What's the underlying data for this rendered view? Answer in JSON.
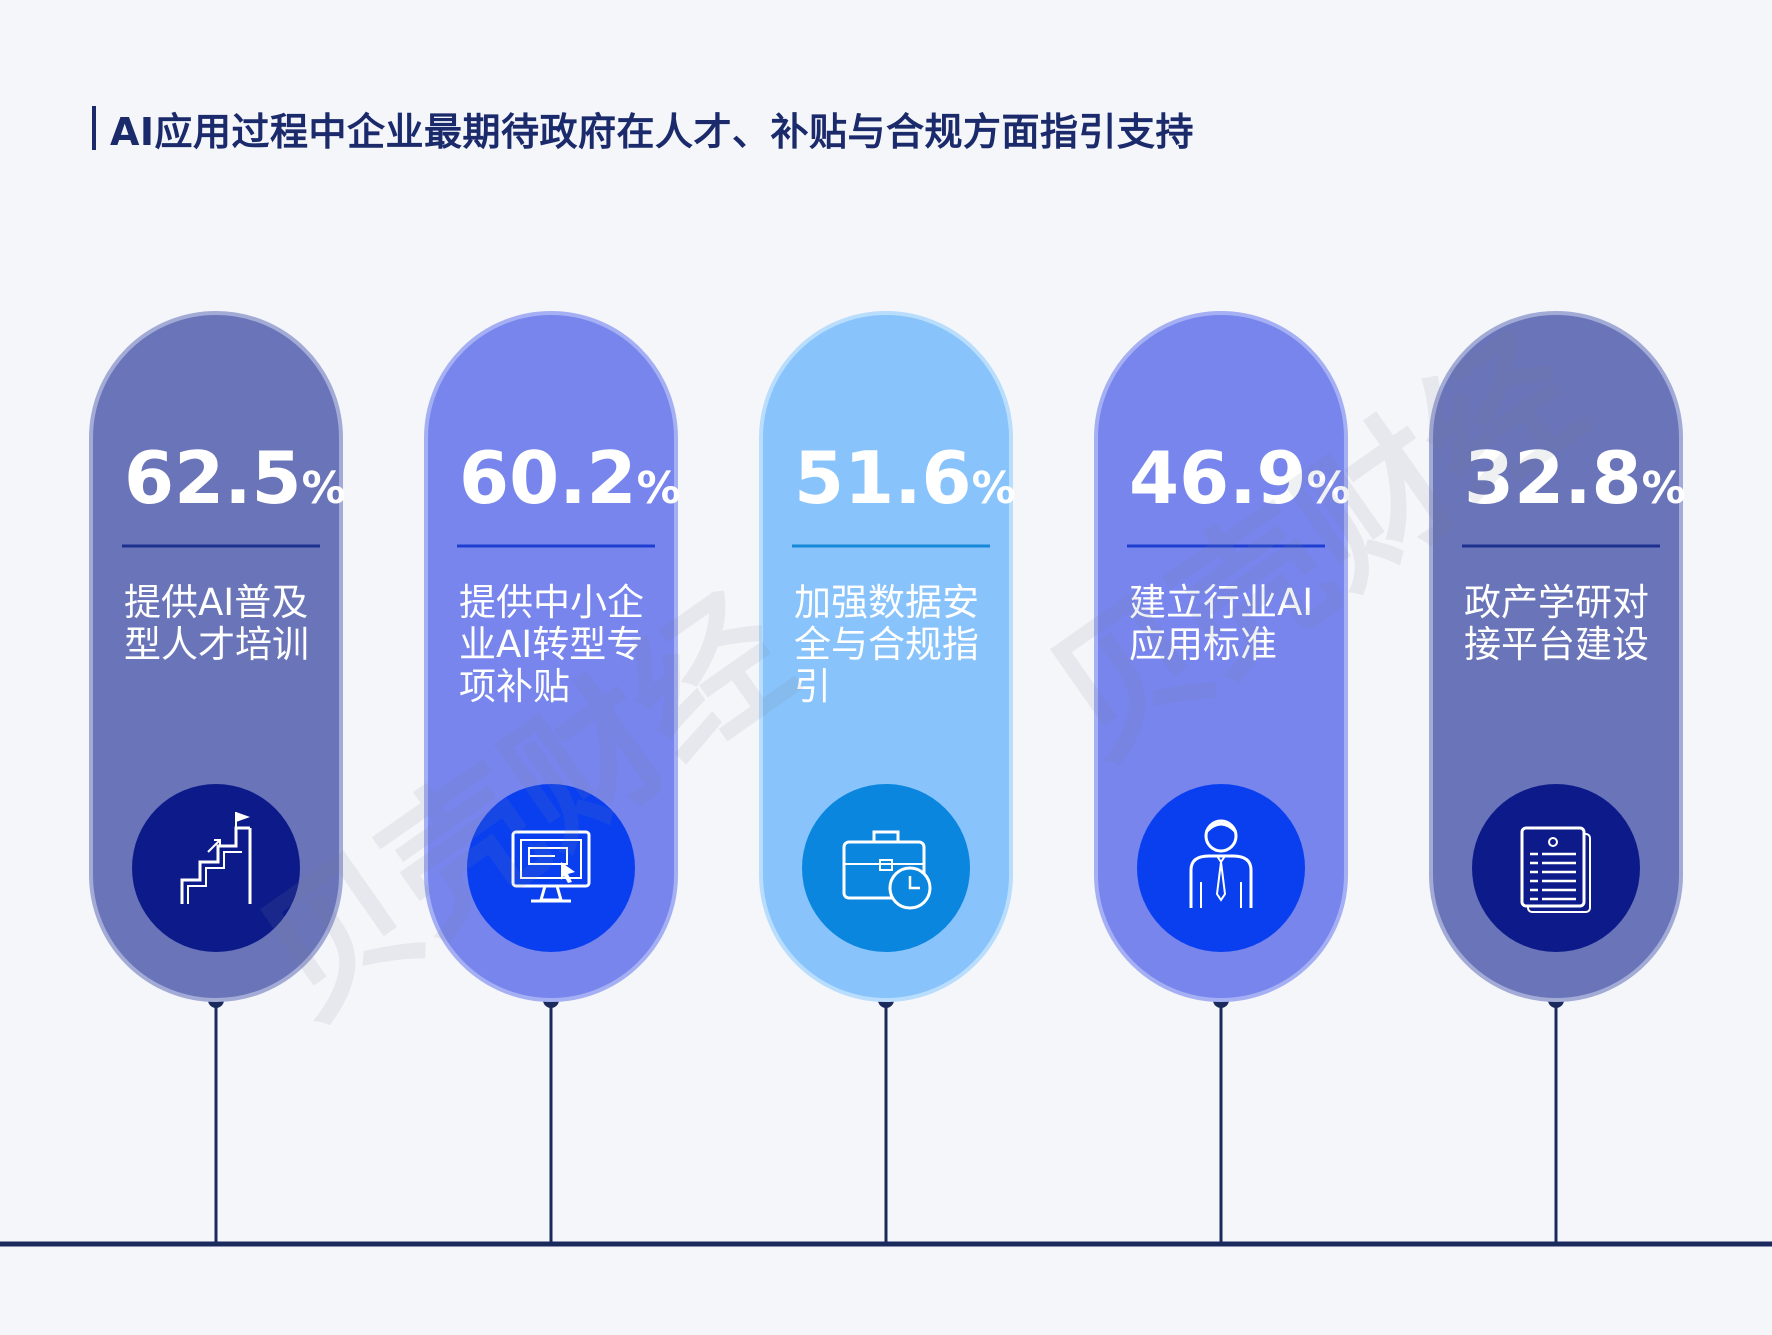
{
  "title": "AI应用过程中企业最期待政府在人才、补贴与合规方面指引支持",
  "watermark": "贝壳财经",
  "chart_data": {
    "type": "bar",
    "unit": "%",
    "categories": [
      [
        "提供AI普及",
        "型人才培训"
      ],
      [
        "提供中小企",
        "业AI转型专",
        "项补贴"
      ],
      [
        "加强数据安",
        "全与合规指",
        "引"
      ],
      [
        "建立行业AI",
        "应用标准"
      ],
      [
        "政产学研对",
        "接平台建设"
      ]
    ],
    "values": [
      62.5,
      60.2,
      51.6,
      46.9,
      32.8
    ]
  },
  "cards": [
    {
      "value": "62.5",
      "unit": "%",
      "icon": "stairs-flag-icon",
      "fill": "#6a74b8",
      "border": "#a2aad6",
      "divider": "#1d2f8f",
      "circle": "#0d1b8a"
    },
    {
      "value": "60.2",
      "unit": "%",
      "icon": "monitor-cursor-icon",
      "fill": "#7785ec",
      "border": "#a5aff3",
      "divider": "#1d3ed0",
      "circle": "#0a3ff0"
    },
    {
      "value": "51.6",
      "unit": "%",
      "icon": "briefcase-clock-icon",
      "fill": "#88c3fb",
      "border": "#b9ddfd",
      "divider": "#1688d8",
      "circle": "#0b86df"
    },
    {
      "value": "46.9",
      "unit": "%",
      "icon": "businessman-icon",
      "fill": "#7785ec",
      "border": "#a5aff3",
      "divider": "#1d3ed0",
      "circle": "#0a3ff0"
    },
    {
      "value": "32.8",
      "unit": "%",
      "icon": "document-list-icon",
      "fill": "#6a74b8",
      "border": "#a2aad6",
      "divider": "#1d2f8f",
      "circle": "#0d1b8a"
    }
  ],
  "colors": {
    "background": "#f5f6fa",
    "timeline": "#1b2a5c",
    "title": "#1b2a6b"
  }
}
